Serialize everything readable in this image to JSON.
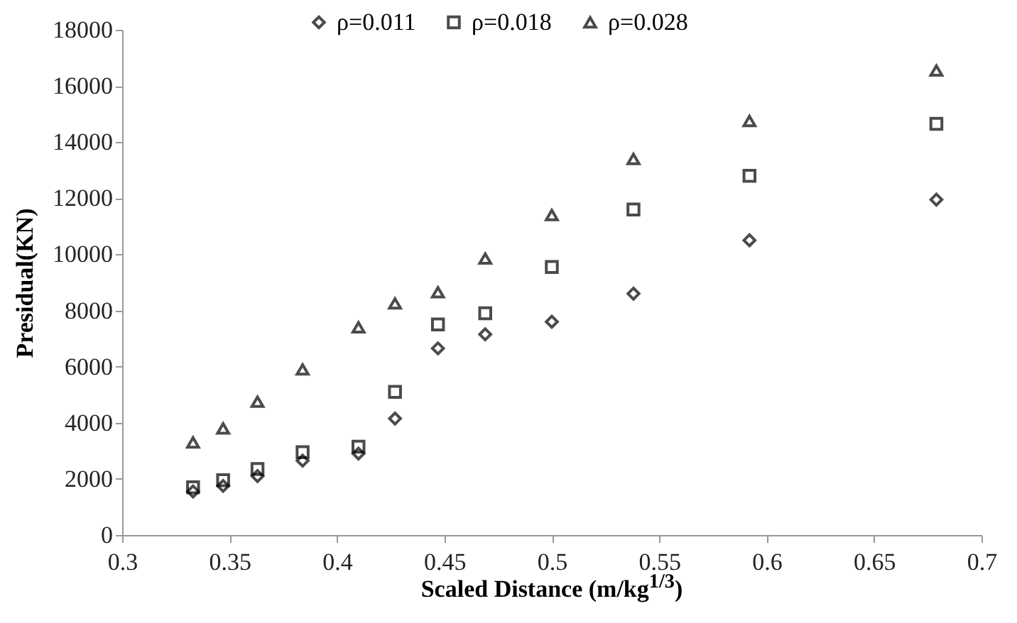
{
  "chart_data": {
    "type": "scatter",
    "xlabel": "Scaled Distance (m/kg$^{1/3}$)",
    "ylabel": "Presidual(KN)",
    "x": [
      0.333,
      0.347,
      0.363,
      0.384,
      0.41,
      0.427,
      0.447,
      0.469,
      0.5,
      0.538,
      0.592,
      0.679
    ],
    "series": [
      {
        "name": "ρ=0.011",
        "color": "#000000",
        "marker": "diamond",
        "values": [
          1550,
          1750,
          2100,
          2650,
          2900,
          4150,
          6650,
          7150,
          7600,
          8600,
          10500,
          11950
        ]
      },
      {
        "name": "ρ=0.018",
        "color": "#000000",
        "marker": "square",
        "values": [
          1700,
          1950,
          2350,
          2950,
          3150,
          5100,
          7500,
          7900,
          9550,
          11600,
          12800,
          14650
        ]
      },
      {
        "name": "ρ=0.028",
        "color": "#000000",
        "marker": "triangle",
        "values": [
          3300,
          3800,
          4750,
          5900,
          7400,
          8250,
          8650,
          9850,
          11400,
          13400,
          14750,
          16550
        ]
      }
    ],
    "xlim": [
      0.3,
      0.7
    ],
    "xticks": [
      0.3,
      0.35,
      0.4,
      0.45,
      0.5,
      0.55,
      0.6,
      0.65,
      0.7
    ],
    "ylim": [
      0,
      18000
    ],
    "yticks": [
      0,
      2000,
      4000,
      6000,
      8000,
      10000,
      12000,
      14000,
      16000,
      18000
    ],
    "grid": false,
    "legend": "top"
  }
}
